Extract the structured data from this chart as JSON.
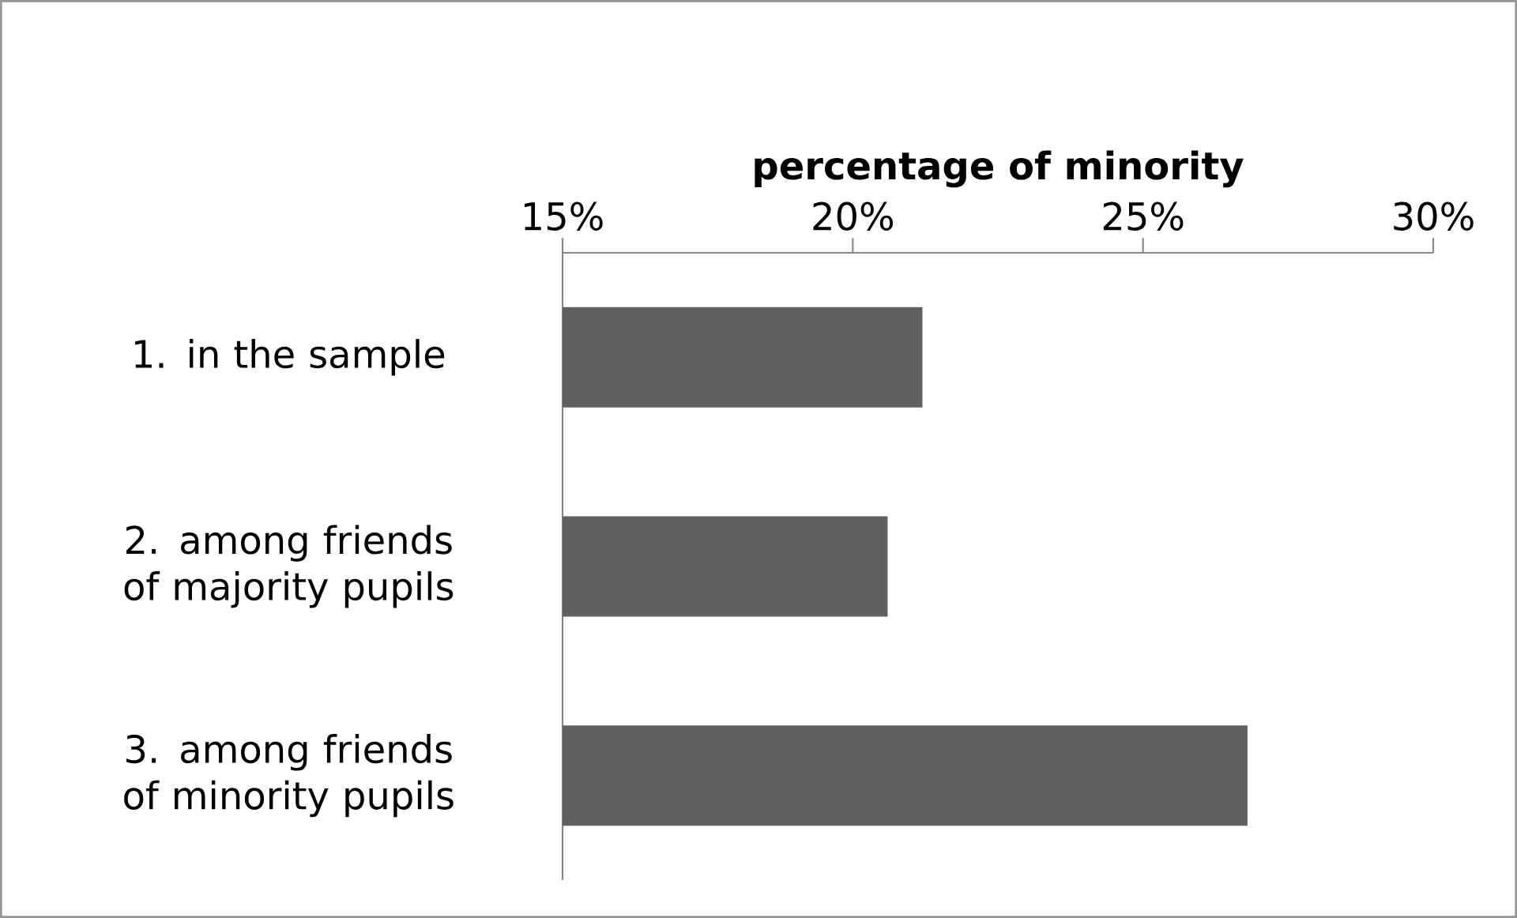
{
  "chart_data": {
    "type": "bar",
    "orientation": "horizontal",
    "xlabel": "percentage of minority",
    "categories": [
      "1. in the sample",
      "2. among friends of majority pupils",
      "3. among friends of minority pupils"
    ],
    "values": [
      21.2,
      20.6,
      26.8
    ],
    "color": "#606060",
    "xlim": [
      15,
      30
    ],
    "xticks": [
      {
        "value": 15,
        "label": "15%"
      },
      {
        "value": 20,
        "label": "20%"
      },
      {
        "value": 25,
        "label": "25%"
      },
      {
        "value": 30,
        "label": "30%"
      }
    ]
  }
}
